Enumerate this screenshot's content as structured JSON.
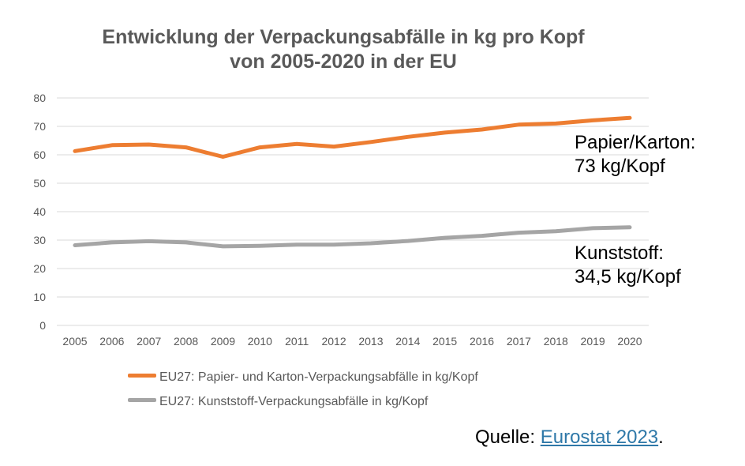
{
  "chart_data": {
    "type": "line",
    "title": "Entwicklung der Verpackungsabfälle in kg pro Kopf",
    "subtitle": "von 2005-2020 in der EU",
    "xlabel": "",
    "ylabel": "",
    "ylim": [
      0,
      80
    ],
    "yticks": [
      "0",
      "10",
      "20",
      "30",
      "40",
      "50",
      "60",
      "70",
      "80"
    ],
    "x": [
      "2005",
      "2006",
      "2007",
      "2008",
      "2009",
      "2010",
      "2011",
      "2012",
      "2013",
      "2014",
      "2015",
      "2016",
      "2017",
      "2018",
      "2019",
      "2020"
    ],
    "grid": true,
    "legend_position": "bottom",
    "series": [
      {
        "name": "EU27: Papier- und Karton-Verpackungsabfälle in kg/Kopf",
        "color": "#ed7d31",
        "values": [
          61.3,
          63.4,
          63.6,
          62.6,
          59.3,
          62.6,
          63.8,
          62.9,
          64.5,
          66.3,
          67.8,
          68.9,
          70.6,
          71.0,
          72.1,
          73.0
        ]
      },
      {
        "name": "EU27: Kunststoff-Verpackungsabfälle in kg/Kopf",
        "color": "#a5a5a5",
        "values": [
          28.2,
          29.2,
          29.6,
          29.2,
          27.8,
          28.0,
          28.4,
          28.4,
          28.9,
          29.7,
          30.8,
          31.5,
          32.6,
          33.1,
          34.2,
          34.5
        ]
      }
    ],
    "annotations": [
      {
        "line1": "Papier/Karton:",
        "line2": "73 kg/Kopf"
      },
      {
        "line1": "Kunststoff:",
        "line2": "34,5 kg/Kopf"
      }
    ]
  },
  "source": {
    "prefix": "Quelle: ",
    "link": "Eurostat 2023",
    "suffix": "."
  }
}
